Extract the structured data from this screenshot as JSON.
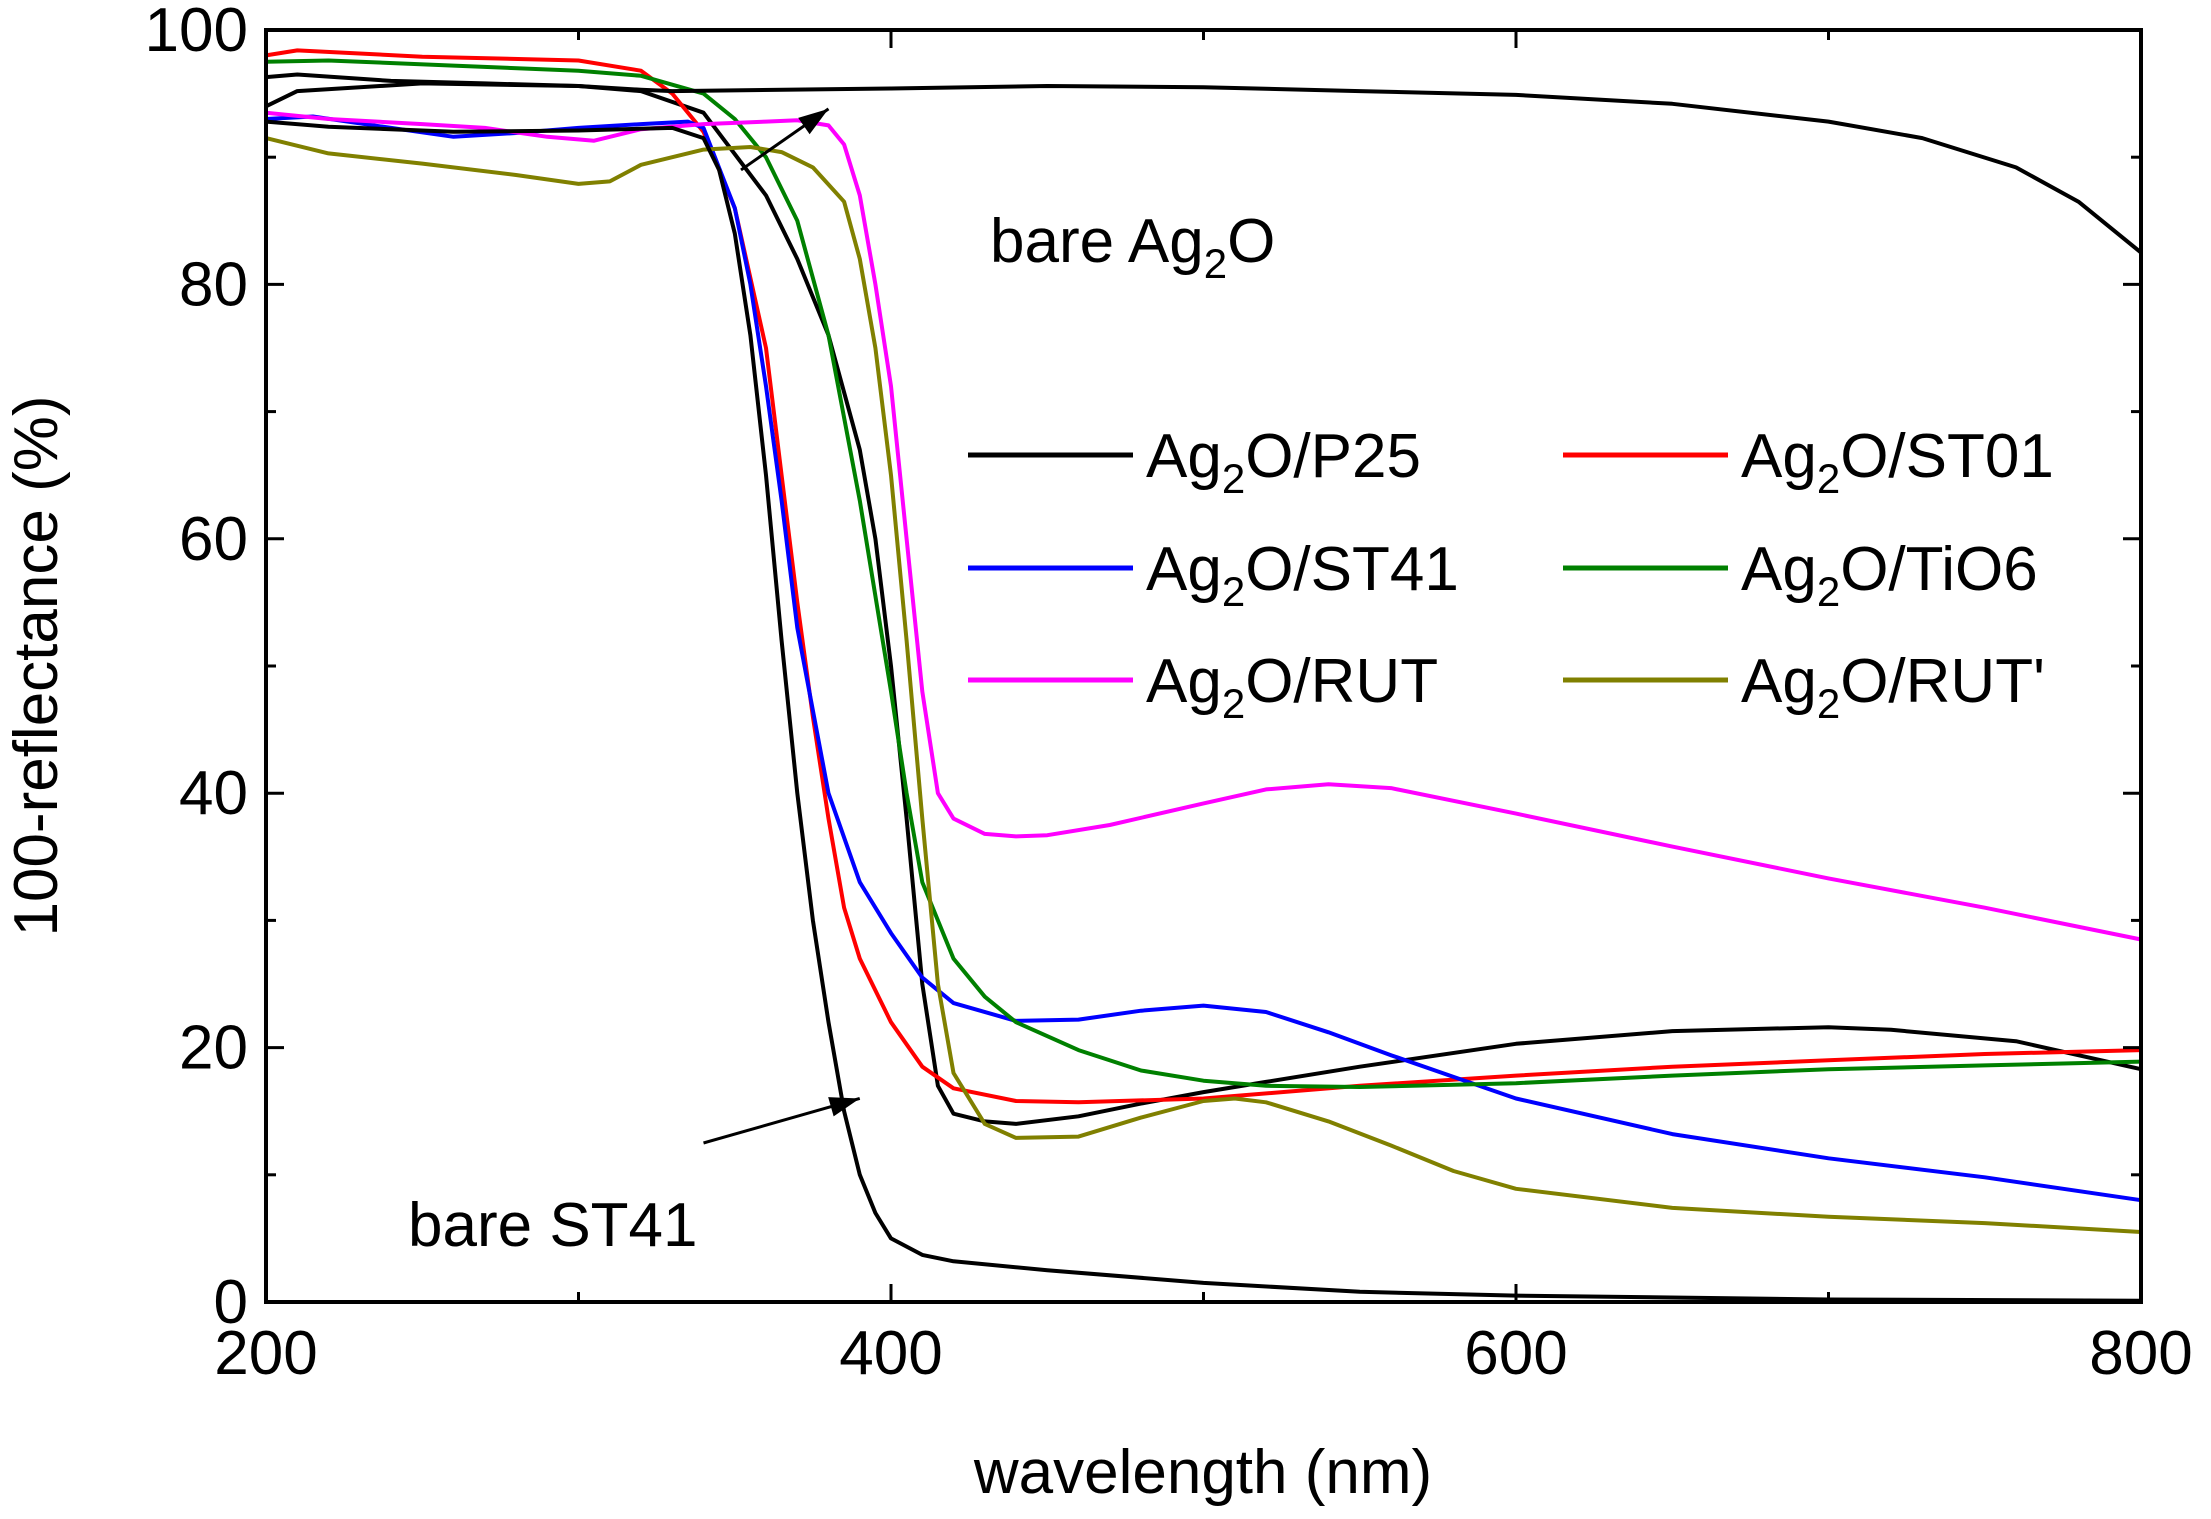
{
  "chart_data": {
    "type": "line",
    "xlabel": "wavelength (nm)",
    "ylabel": "100-reflectance (%)",
    "xlim": [
      200,
      800
    ],
    "ylim": [
      0,
      100
    ],
    "xticks": [
      "200",
      "400",
      "600",
      "800"
    ],
    "yticks": [
      "0",
      "20",
      "40",
      "60",
      "80",
      "100"
    ],
    "grid": false,
    "legend_position": "center-right",
    "series": [
      {
        "name_main": "Ag",
        "name_sub": "2",
        "name_rest": "O/P25",
        "color": "#000000",
        "points": [
          [
            200,
            94
          ],
          [
            210,
            95.2
          ],
          [
            250,
            95.8
          ],
          [
            300,
            95.6
          ],
          [
            320,
            95.2
          ],
          [
            340,
            93.5
          ],
          [
            360,
            87
          ],
          [
            370,
            82
          ],
          [
            380,
            76
          ],
          [
            390,
            67
          ],
          [
            395,
            60
          ],
          [
            400,
            50
          ],
          [
            405,
            38
          ],
          [
            410,
            25
          ],
          [
            415,
            17
          ],
          [
            420,
            14.8
          ],
          [
            430,
            14.2
          ],
          [
            440,
            14.0
          ],
          [
            460,
            14.6
          ],
          [
            480,
            15.6
          ],
          [
            500,
            16.5
          ],
          [
            520,
            17.3
          ],
          [
            550,
            18.5
          ],
          [
            600,
            20.3
          ],
          [
            650,
            21.3
          ],
          [
            700,
            21.6
          ],
          [
            720,
            21.4
          ],
          [
            760,
            20.5
          ],
          [
            800,
            18.3
          ]
        ]
      },
      {
        "name_main": "Ag",
        "name_sub": "2",
        "name_rest": "O/ST01",
        "color": "#ff0000",
        "points": [
          [
            200,
            98
          ],
          [
            210,
            98.4
          ],
          [
            250,
            97.9
          ],
          [
            300,
            97.6
          ],
          [
            320,
            96.8
          ],
          [
            330,
            95
          ],
          [
            340,
            92
          ],
          [
            350,
            86
          ],
          [
            360,
            75
          ],
          [
            365,
            65
          ],
          [
            370,
            55
          ],
          [
            375,
            46
          ],
          [
            380,
            38
          ],
          [
            385,
            31
          ],
          [
            390,
            27
          ],
          [
            400,
            22
          ],
          [
            410,
            18.5
          ],
          [
            420,
            16.8
          ],
          [
            440,
            15.8
          ],
          [
            460,
            15.7
          ],
          [
            500,
            16.0
          ],
          [
            550,
            17.0
          ],
          [
            600,
            17.8
          ],
          [
            650,
            18.5
          ],
          [
            700,
            19.0
          ],
          [
            750,
            19.5
          ],
          [
            800,
            19.8
          ]
        ]
      },
      {
        "name_main": "Ag",
        "name_sub": "2",
        "name_rest": "O/ST41",
        "color": "#0000ff",
        "points": [
          [
            200,
            93
          ],
          [
            215,
            93.2
          ],
          [
            240,
            92.3
          ],
          [
            260,
            91.6
          ],
          [
            280,
            91.9
          ],
          [
            300,
            92.3
          ],
          [
            320,
            92.6
          ],
          [
            335,
            92.8
          ],
          [
            340,
            92.3
          ],
          [
            350,
            86
          ],
          [
            355,
            80
          ],
          [
            360,
            72
          ],
          [
            365,
            63
          ],
          [
            370,
            53
          ],
          [
            380,
            40
          ],
          [
            390,
            33
          ],
          [
            400,
            29
          ],
          [
            410,
            25.5
          ],
          [
            420,
            23.5
          ],
          [
            440,
            22.1
          ],
          [
            460,
            22.2
          ],
          [
            480,
            22.9
          ],
          [
            500,
            23.3
          ],
          [
            520,
            22.8
          ],
          [
            540,
            21.2
          ],
          [
            560,
            19.4
          ],
          [
            580,
            17.7
          ],
          [
            600,
            16.0
          ],
          [
            650,
            13.2
          ],
          [
            700,
            11.3
          ],
          [
            750,
            9.8
          ],
          [
            800,
            8.0
          ]
        ]
      },
      {
        "name_main": "Ag",
        "name_sub": "2",
        "name_rest": "O/TiO6",
        "color": "#008000",
        "points": [
          [
            200,
            97.5
          ],
          [
            220,
            97.6
          ],
          [
            260,
            97.2
          ],
          [
            300,
            96.8
          ],
          [
            320,
            96.4
          ],
          [
            340,
            95
          ],
          [
            350,
            93
          ],
          [
            360,
            90
          ],
          [
            370,
            85
          ],
          [
            380,
            76
          ],
          [
            390,
            63
          ],
          [
            400,
            48
          ],
          [
            405,
            40
          ],
          [
            410,
            33
          ],
          [
            420,
            27
          ],
          [
            430,
            24
          ],
          [
            440,
            22
          ],
          [
            460,
            19.8
          ],
          [
            480,
            18.2
          ],
          [
            500,
            17.4
          ],
          [
            520,
            17.0
          ],
          [
            550,
            16.9
          ],
          [
            600,
            17.2
          ],
          [
            650,
            17.8
          ],
          [
            700,
            18.3
          ],
          [
            750,
            18.6
          ],
          [
            800,
            18.9
          ]
        ]
      },
      {
        "name_main": "Ag",
        "name_sub": "2",
        "name_rest": "O/RUT",
        "color": "#ff00ff",
        "points": [
          [
            200,
            93.5
          ],
          [
            220,
            93
          ],
          [
            250,
            92.6
          ],
          [
            270,
            92.3
          ],
          [
            290,
            91.6
          ],
          [
            305,
            91.3
          ],
          [
            320,
            92.2
          ],
          [
            340,
            92.6
          ],
          [
            360,
            92.8
          ],
          [
            370,
            92.9
          ],
          [
            380,
            92.5
          ],
          [
            385,
            91
          ],
          [
            390,
            87
          ],
          [
            395,
            80
          ],
          [
            400,
            72
          ],
          [
            405,
            60
          ],
          [
            410,
            48
          ],
          [
            415,
            40
          ],
          [
            420,
            38
          ],
          [
            430,
            36.8
          ],
          [
            440,
            36.6
          ],
          [
            450,
            36.7
          ],
          [
            470,
            37.5
          ],
          [
            500,
            39.2
          ],
          [
            520,
            40.3
          ],
          [
            540,
            40.7
          ],
          [
            560,
            40.4
          ],
          [
            600,
            38.4
          ],
          [
            650,
            35.8
          ],
          [
            700,
            33.3
          ],
          [
            750,
            31.0
          ],
          [
            800,
            28.5
          ]
        ]
      },
      {
        "name_main": "Ag",
        "name_sub": "2",
        "name_rest": "O/RUT'",
        "color": "#808000",
        "points": [
          [
            200,
            91.5
          ],
          [
            220,
            90.3
          ],
          [
            250,
            89.5
          ],
          [
            280,
            88.6
          ],
          [
            300,
            87.9
          ],
          [
            310,
            88.1
          ],
          [
            320,
            89.4
          ],
          [
            340,
            90.6
          ],
          [
            355,
            90.8
          ],
          [
            365,
            90.4
          ],
          [
            375,
            89.2
          ],
          [
            385,
            86.5
          ],
          [
            390,
            82
          ],
          [
            395,
            75
          ],
          [
            400,
            65
          ],
          [
            405,
            52
          ],
          [
            410,
            38
          ],
          [
            415,
            25
          ],
          [
            420,
            18
          ],
          [
            430,
            14
          ],
          [
            440,
            12.9
          ],
          [
            460,
            13.0
          ],
          [
            480,
            14.5
          ],
          [
            500,
            15.8
          ],
          [
            510,
            16.0
          ],
          [
            520,
            15.7
          ],
          [
            540,
            14.2
          ],
          [
            560,
            12.3
          ],
          [
            580,
            10.3
          ],
          [
            600,
            8.9
          ],
          [
            650,
            7.4
          ],
          [
            700,
            6.7
          ],
          [
            750,
            6.2
          ],
          [
            800,
            5.5
          ]
        ]
      },
      {
        "name_main": "bare Ag",
        "name_sub": "2",
        "name_rest": "O",
        "color": "#000000",
        "points": [
          [
            200,
            96.3
          ],
          [
            210,
            96.5
          ],
          [
            240,
            96.0
          ],
          [
            270,
            95.8
          ],
          [
            300,
            95.6
          ],
          [
            320,
            95.3
          ],
          [
            330,
            95.2
          ],
          [
            400,
            95.4
          ],
          [
            450,
            95.6
          ],
          [
            500,
            95.5
          ],
          [
            550,
            95.2
          ],
          [
            600,
            94.9
          ],
          [
            650,
            94.2
          ],
          [
            700,
            92.8
          ],
          [
            730,
            91.5
          ],
          [
            760,
            89.2
          ],
          [
            780,
            86.5
          ],
          [
            800,
            82.5
          ]
        ]
      },
      {
        "name_main": "bare ST41",
        "name_sub": "",
        "name_rest": "",
        "color": "#000000",
        "points": [
          [
            200,
            92.8
          ],
          [
            220,
            92.4
          ],
          [
            260,
            92.0
          ],
          [
            300,
            92.1
          ],
          [
            330,
            92.3
          ],
          [
            340,
            91.5
          ],
          [
            345,
            89
          ],
          [
            350,
            84
          ],
          [
            355,
            76
          ],
          [
            360,
            65
          ],
          [
            365,
            52
          ],
          [
            370,
            40
          ],
          [
            375,
            30
          ],
          [
            380,
            22
          ],
          [
            385,
            15
          ],
          [
            390,
            10
          ],
          [
            395,
            7
          ],
          [
            400,
            5
          ],
          [
            410,
            3.7
          ],
          [
            420,
            3.2
          ],
          [
            450,
            2.5
          ],
          [
            500,
            1.5
          ],
          [
            550,
            0.8
          ],
          [
            600,
            0.5
          ],
          [
            700,
            0.2
          ],
          [
            800,
            0.1
          ]
        ]
      }
    ],
    "legend_rows": [
      [
        0,
        1
      ],
      [
        2,
        3
      ],
      [
        4,
        5
      ]
    ],
    "annotations": [
      {
        "id": "ann-ag2o",
        "main": "bare Ag",
        "sub": "2",
        "rest": "O",
        "arrow_from": [
          352,
          89
        ],
        "arrow_to": [
          380,
          93.8
        ]
      },
      {
        "id": "ann-st41",
        "main": "bare ST41",
        "sub": "",
        "rest": "",
        "arrow_from": [
          340,
          12.5
        ],
        "arrow_to": [
          390,
          16
        ]
      }
    ]
  }
}
